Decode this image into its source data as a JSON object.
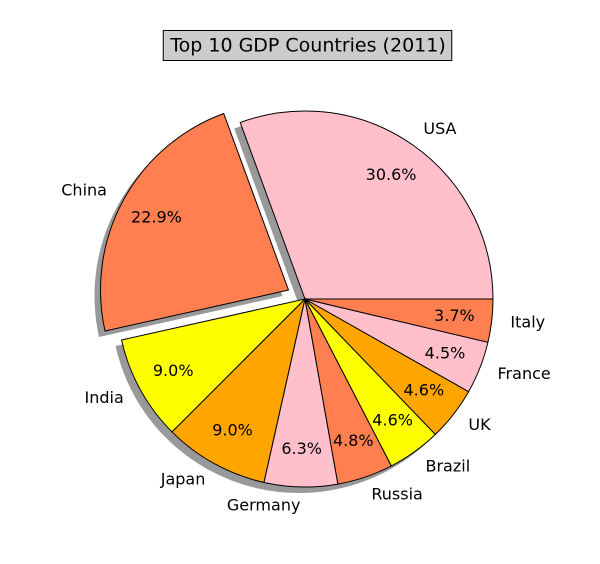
{
  "chart_data": {
    "type": "pie",
    "title": "Top 10 GDP Countries (2011)",
    "categories": [
      "USA",
      "China",
      "India",
      "Japan",
      "Germany",
      "Russia",
      "Brazil",
      "UK",
      "France",
      "Italy"
    ],
    "values": [
      30.6,
      22.9,
      9.0,
      9.0,
      6.3,
      4.8,
      4.6,
      4.6,
      4.5,
      3.7
    ],
    "value_labels": [
      "30.6%",
      "22.9%",
      "9.0%",
      "9.0%",
      "6.3%",
      "4.8%",
      "4.6%",
      "4.6%",
      "4.5%",
      "3.7%"
    ],
    "colors": [
      "#ffc0cb",
      "#ff7f50",
      "#ffff00",
      "#ffa500",
      "#ffc0cb",
      "#ff7f50",
      "#ffff00",
      "#ffa500",
      "#ffc0cb",
      "#ff7f50"
    ],
    "explode": [
      0,
      0.1,
      0,
      0,
      0,
      0,
      0,
      0,
      0,
      0
    ],
    "shadow": true
  }
}
